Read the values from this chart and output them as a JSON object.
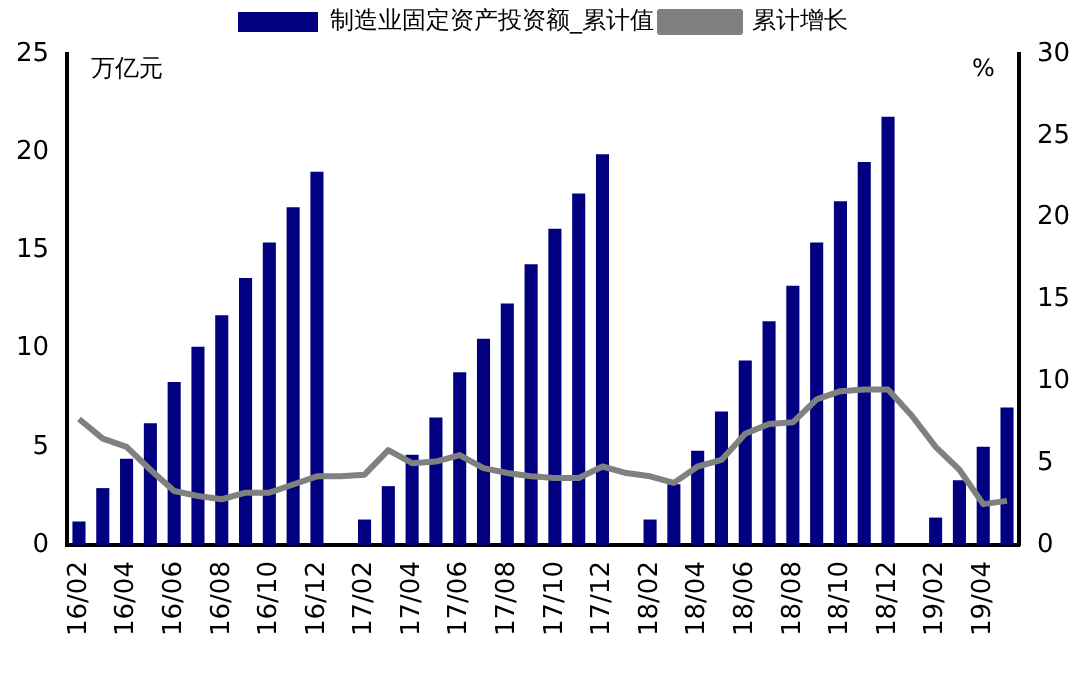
{
  "chart_data": {
    "type": "bar",
    "ylabel": "万亿元",
    "y2label": "%",
    "categories": [
      "16/02",
      null,
      "16/04",
      null,
      "16/06",
      null,
      "16/08",
      null,
      "16/10",
      null,
      "16/12",
      null,
      "17/02",
      null,
      "17/04",
      null,
      "17/06",
      null,
      "17/08",
      null,
      "17/10",
      null,
      "17/12",
      null,
      "18/02",
      null,
      "18/04",
      null,
      "18/06",
      null,
      "18/08",
      null,
      "18/10",
      null,
      "18/12",
      null,
      "19/02",
      null,
      "19/04",
      null
    ],
    "series": [
      {
        "name": "制造业固定资产投资额_累计值",
        "color": "#000080",
        "values": [
          1.2,
          2.9,
          4.4,
          6.2,
          8.3,
          10.1,
          11.7,
          13.6,
          15.4,
          17.2,
          19.0,
          null,
          1.3,
          3.0,
          4.6,
          6.5,
          8.8,
          10.5,
          12.3,
          14.3,
          16.1,
          17.9,
          19.9,
          null,
          1.3,
          3.1,
          4.8,
          6.8,
          9.4,
          11.4,
          13.2,
          15.4,
          17.5,
          19.5,
          21.8,
          null,
          1.4,
          3.3,
          5.0,
          7.0
        ]
      },
      {
        "name": "累计增长",
        "type": "line",
        "axis": "y2",
        "color": "#808080",
        "values": [
          7.7,
          6.5,
          6.0,
          4.6,
          3.3,
          3.0,
          2.8,
          3.2,
          3.2,
          3.7,
          4.2,
          4.2,
          4.3,
          5.8,
          5.0,
          5.1,
          5.5,
          4.7,
          4.4,
          4.2,
          4.1,
          4.1,
          4.8,
          4.4,
          4.2,
          3.8,
          4.8,
          5.2,
          6.8,
          7.4,
          7.5,
          8.9,
          9.4,
          9.5,
          9.5,
          7.9,
          6.0,
          4.6,
          2.5,
          2.7
        ]
      }
    ],
    "ylim": [
      0,
      25
    ],
    "yticks": [
      0,
      5,
      10,
      15,
      20,
      25
    ],
    "y2lim": [
      0,
      30
    ],
    "y2ticks": [
      0,
      5,
      10,
      15,
      20,
      25,
      30
    ],
    "grid": false,
    "legend": "top",
    "marker": "none",
    "line_style": "solid"
  }
}
